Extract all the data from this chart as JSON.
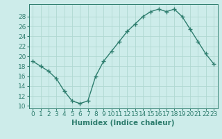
{
  "x": [
    0,
    1,
    2,
    3,
    4,
    5,
    6,
    7,
    8,
    9,
    10,
    11,
    12,
    13,
    14,
    15,
    16,
    17,
    18,
    19,
    20,
    21,
    22,
    23
  ],
  "y": [
    19,
    18,
    17,
    15.5,
    13,
    11,
    10.5,
    11,
    16,
    19,
    21,
    23,
    25,
    26.5,
    28,
    29,
    29.5,
    29,
    29.5,
    28,
    25.5,
    23,
    20.5,
    18.5
  ],
  "line_color": "#2e7d6e",
  "marker": "+",
  "bg_color": "#cdecea",
  "grid_color": "#b0d8d2",
  "xlabel": "Humidex (Indice chaleur)",
  "xlim": [
    -0.5,
    23.5
  ],
  "ylim": [
    9.5,
    30.5
  ],
  "yticks": [
    10,
    12,
    14,
    16,
    18,
    20,
    22,
    24,
    26,
    28
  ],
  "xtick_labels": [
    "0",
    "1",
    "2",
    "3",
    "4",
    "5",
    "6",
    "7",
    "8",
    "9",
    "10",
    "11",
    "12",
    "13",
    "14",
    "15",
    "16",
    "17",
    "18",
    "19",
    "20",
    "21",
    "22",
    "23"
  ],
  "tick_fontsize": 6.5,
  "xlabel_fontsize": 7.5,
  "line_width": 1.0,
  "marker_size": 4
}
